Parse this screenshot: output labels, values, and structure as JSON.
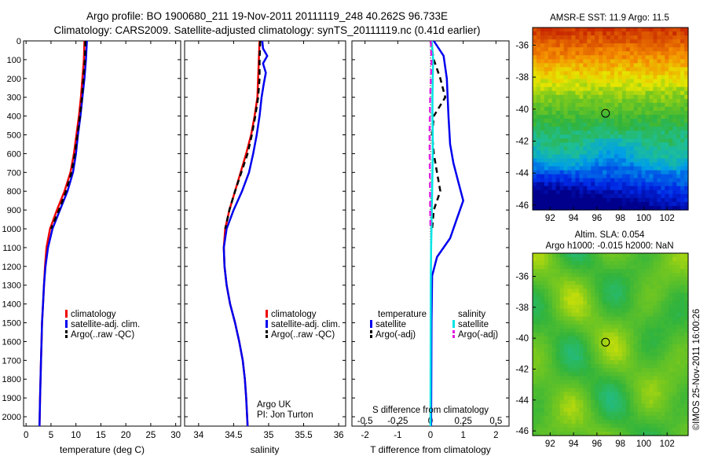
{
  "header": {
    "line1": "Argo profile: BO 1900680_211 19-Nov-2011 20111119_248 40.262S 96.733E",
    "line2": "Climatology: CARS2009. Satellite-adjusted climatology: synTS_20111119.nc (0.41d earlier)"
  },
  "right_titles": {
    "sst": "AMSR-E SST: 11.9 Argo: 11.5",
    "sla_line1": "Altim. SLA: 0.054",
    "sla_line2": "Argo h1000: -0.015 h2000: NaN"
  },
  "side_stamp": "©IMOS 25-Nov-2011 16:00:26",
  "credit": {
    "line1": "Argo UK",
    "line2": "PI: Jon Turton"
  },
  "colors": {
    "climatology": "#ee0000",
    "satellite": "#0000ee",
    "argo": "#000000",
    "cyan": "#00e5e5",
    "magenta": "#e020e0"
  },
  "chart_data": [
    {
      "type": "line",
      "xlabel": "temperature (deg C)",
      "xlim": [
        -0.5,
        31
      ],
      "xticks": [
        "0",
        "5",
        "10",
        "15",
        "20",
        "25",
        "30"
      ],
      "ylim": [
        0,
        2050
      ],
      "yticks": [
        "0",
        "100",
        "200",
        "300",
        "400",
        "500",
        "600",
        "700",
        "800",
        "900",
        "1000",
        "1100",
        "1200",
        "1300",
        "1400",
        "1500",
        "1600",
        "1700",
        "1800",
        "1900",
        "2000"
      ],
      "legend": [
        "climatology",
        "satellite-adj. clim.",
        "Argo(..raw -QC)"
      ],
      "series": [
        {
          "name": "climatology",
          "style": "solid",
          "color": "#ee0000",
          "points": [
            [
              11.7,
              0
            ],
            [
              11.6,
              100
            ],
            [
              11.3,
              200
            ],
            [
              11,
              300
            ],
            [
              10.6,
              400
            ],
            [
              10.1,
              500
            ],
            [
              9.6,
              600
            ],
            [
              8.9,
              700
            ],
            [
              7.7,
              800
            ],
            [
              6.2,
              900
            ],
            [
              4.8,
              1000
            ],
            [
              4.1,
              1100
            ],
            [
              3.8,
              1200
            ],
            [
              3.6,
              1300
            ],
            [
              3.4,
              1400
            ],
            [
              3.2,
              1500
            ],
            [
              3.1,
              1600
            ],
            [
              3,
              1700
            ],
            [
              2.9,
              1800
            ],
            [
              2.8,
              1900
            ],
            [
              2.7,
              2050
            ]
          ]
        },
        {
          "name": "satellite-adj. clim.",
          "style": "solid",
          "color": "#0000ee",
          "points": [
            [
              12.2,
              0
            ],
            [
              12,
              100
            ],
            [
              11.7,
              200
            ],
            [
              11.3,
              300
            ],
            [
              10.9,
              400
            ],
            [
              10.4,
              500
            ],
            [
              10,
              600
            ],
            [
              9.4,
              700
            ],
            [
              8.3,
              800
            ],
            [
              6.8,
              900
            ],
            [
              5.3,
              1000
            ],
            [
              4.4,
              1100
            ],
            [
              3.9,
              1200
            ],
            [
              3.6,
              1300
            ],
            [
              3.4,
              1400
            ],
            [
              3.2,
              1500
            ],
            [
              3.1,
              1600
            ],
            [
              3,
              1700
            ],
            [
              2.9,
              1800
            ],
            [
              2.8,
              1900
            ],
            [
              2.7,
              2050
            ]
          ]
        },
        {
          "name": "Argo(..raw -QC)",
          "style": "dashed",
          "color": "#000000",
          "points": [
            [
              11.9,
              0
            ],
            [
              11.8,
              100
            ],
            [
              11.5,
              200
            ],
            [
              11.2,
              300
            ],
            [
              10.8,
              400
            ],
            [
              10.3,
              500
            ],
            [
              9.8,
              600
            ],
            [
              9.1,
              700
            ],
            [
              8,
              800
            ],
            [
              6.6,
              900
            ],
            [
              5,
              1000
            ]
          ]
        }
      ]
    },
    {
      "type": "line",
      "xlabel": "salinity",
      "xlim": [
        33.8,
        36.1
      ],
      "xticks": [
        "34",
        "34.5",
        "35",
        "35.5",
        "36"
      ],
      "ylim": [
        0,
        2050
      ],
      "legend": [
        "climatology",
        "satellite-adj. clim.",
        "Argo(..raw -QC)"
      ],
      "series": [
        {
          "name": "climatology",
          "style": "solid",
          "color": "#ee0000",
          "points": [
            [
              34.87,
              0
            ],
            [
              34.86,
              100
            ],
            [
              34.85,
              200
            ],
            [
              34.84,
              300
            ],
            [
              34.8,
              400
            ],
            [
              34.75,
              500
            ],
            [
              34.68,
              600
            ],
            [
              34.6,
              700
            ],
            [
              34.52,
              800
            ],
            [
              34.44,
              900
            ],
            [
              34.38,
              1000
            ],
            [
              34.36,
              1100
            ],
            [
              34.37,
              1200
            ],
            [
              34.4,
              1300
            ],
            [
              34.45,
              1400
            ],
            [
              34.52,
              1500
            ],
            [
              34.58,
              1600
            ],
            [
              34.63,
              1700
            ],
            [
              34.66,
              1800
            ],
            [
              34.68,
              1900
            ],
            [
              34.7,
              2050
            ]
          ]
        },
        {
          "name": "satellite-adj. clim.",
          "style": "solid",
          "color": "#0000ee",
          "points": [
            [
              34.91,
              0
            ],
            [
              34.92,
              40
            ],
            [
              34.98,
              80
            ],
            [
              34.92,
              120
            ],
            [
              34.96,
              170
            ],
            [
              34.93,
              230
            ],
            [
              34.9,
              300
            ],
            [
              34.87,
              400
            ],
            [
              34.83,
              500
            ],
            [
              34.78,
              600
            ],
            [
              34.72,
              700
            ],
            [
              34.62,
              800
            ],
            [
              34.5,
              900
            ],
            [
              34.4,
              1000
            ],
            [
              34.36,
              1100
            ],
            [
              34.37,
              1200
            ],
            [
              34.4,
              1300
            ],
            [
              34.45,
              1400
            ],
            [
              34.52,
              1500
            ],
            [
              34.58,
              1600
            ],
            [
              34.63,
              1700
            ],
            [
              34.66,
              1800
            ],
            [
              34.68,
              1900
            ],
            [
              34.7,
              2050
            ]
          ]
        },
        {
          "name": "Argo(..raw -QC)",
          "style": "dashed",
          "color": "#000000",
          "points": [
            [
              34.88,
              0
            ],
            [
              34.87,
              100
            ],
            [
              34.87,
              200
            ],
            [
              34.85,
              300
            ],
            [
              34.81,
              400
            ],
            [
              34.76,
              500
            ],
            [
              34.7,
              600
            ],
            [
              34.61,
              700
            ],
            [
              34.52,
              800
            ],
            [
              34.44,
              900
            ],
            [
              34.38,
              1000
            ]
          ]
        }
      ]
    },
    {
      "type": "line",
      "xlabel": "T difference from climatology",
      "xlabel_top": "S difference from climatology",
      "xlim": [
        -2.4,
        2.4
      ],
      "xticks": [
        "-2",
        "-1",
        "0",
        "1",
        "2"
      ],
      "xticks_top": [
        "-0.5",
        "-0.25",
        "0",
        "0.25",
        "0.5"
      ],
      "ylim": [
        0,
        2050
      ],
      "legend_groups": [
        "temperature",
        "salinity"
      ],
      "legend": [
        "satellite",
        "Argo(-adj)",
        "satellite",
        "Argo(-adj)"
      ],
      "series": [
        {
          "name": "temperature satellite",
          "style": "solid",
          "color": "#0000ee",
          "points": [
            [
              0.1,
              0
            ],
            [
              0.4,
              80
            ],
            [
              0.5,
              200
            ],
            [
              0.55,
              400
            ],
            [
              0.6,
              550
            ],
            [
              0.7,
              650
            ],
            [
              0.85,
              750
            ],
            [
              1.0,
              850
            ],
            [
              0.8,
              950
            ],
            [
              0.6,
              1050
            ],
            [
              0.2,
              1150
            ],
            [
              0.05,
              1250
            ],
            [
              0.03,
              1500
            ],
            [
              0.02,
              2050
            ]
          ]
        },
        {
          "name": "temperature Argo(-adj)",
          "style": "dashed",
          "color": "#000000",
          "points": [
            [
              0,
              0
            ],
            [
              0.1,
              100
            ],
            [
              0.3,
              200
            ],
            [
              0.45,
              300
            ],
            [
              0.1,
              400
            ],
            [
              0.05,
              500
            ],
            [
              0.1,
              600
            ],
            [
              0.2,
              700
            ],
            [
              0.3,
              800
            ],
            [
              0.1,
              900
            ],
            [
              0.05,
              1000
            ]
          ]
        },
        {
          "name": "salinity satellite",
          "style": "solid",
          "color": "#00e5e5",
          "points": [
            [
              0.04,
              0
            ],
            [
              0.08,
              100
            ],
            [
              0.07,
              200
            ],
            [
              0.06,
              300
            ],
            [
              0.06,
              400
            ],
            [
              0.07,
              500
            ],
            [
              0.07,
              600
            ],
            [
              0.06,
              700
            ],
            [
              0.05,
              800
            ],
            [
              0.04,
              900
            ],
            [
              0.03,
              1000
            ],
            [
              0.02,
              1100
            ],
            [
              0.01,
              1300
            ],
            [
              0,
              2050
            ]
          ]
        },
        {
          "name": "salinity Argo(-adj)",
          "style": "dashed",
          "color": "#e020e0",
          "points": [
            [
              0.01,
              0
            ],
            [
              0.03,
              100
            ],
            [
              -0.01,
              300
            ],
            [
              -0.03,
              500
            ],
            [
              -0.02,
              700
            ],
            [
              -0.01,
              900
            ],
            [
              0,
              1000
            ]
          ]
        }
      ]
    },
    {
      "type": "heatmap",
      "title": "AMSR-E SST: 11.9 Argo: 11.5",
      "xlim": [
        90.5,
        103.8
      ],
      "ylim": [
        -46.3,
        -34.9
      ],
      "xticks": [
        "92",
        "94",
        "96",
        "98",
        "100",
        "102"
      ],
      "yticks": [
        "-36",
        "-38",
        "-40",
        "-42",
        "-44",
        "-46"
      ],
      "marker": {
        "lon": 96.733,
        "lat": -40.262
      }
    },
    {
      "type": "heatmap",
      "title": "Altim. SLA: 0.054",
      "xlim": [
        90.5,
        103.8
      ],
      "ylim": [
        -46.3,
        -34.5
      ],
      "xticks": [
        "92",
        "94",
        "96",
        "98",
        "100",
        "102"
      ],
      "yticks": [
        "-36",
        "-38",
        "-40",
        "-42",
        "-44",
        "-46"
      ],
      "marker": {
        "lon": 96.733,
        "lat": -40.262
      }
    }
  ]
}
